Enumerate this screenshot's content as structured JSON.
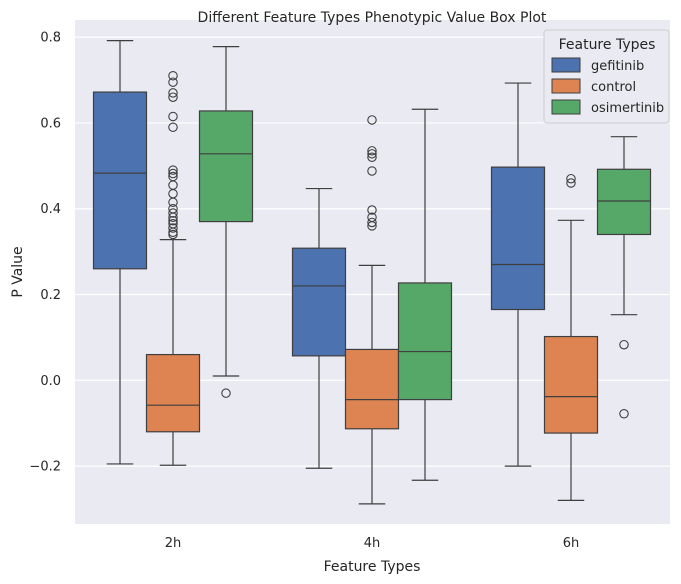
{
  "chart_data": {
    "type": "box",
    "title": "Different Feature Types Phenotypic Value Box Plot",
    "xlabel": "Feature Types",
    "ylabel": "P Value",
    "ylim": [
      -0.335,
      0.84
    ],
    "yticks": [
      -0.2,
      0.0,
      0.2,
      0.4,
      0.6,
      0.8
    ],
    "ytick_labels": [
      "−0.2",
      "0.0",
      "0.2",
      "0.4",
      "0.6",
      "0.8"
    ],
    "grid": true,
    "categories": [
      "2h",
      "4h",
      "6h"
    ],
    "legend": {
      "title": "Feature Types",
      "placement": "top-right"
    },
    "series": [
      {
        "name": "gefitinib",
        "color": "#4c72b0",
        "boxes": [
          {
            "whisker_low": -0.195,
            "q1": 0.26,
            "median": 0.483,
            "q3": 0.672,
            "whisker_high": 0.792,
            "outliers": []
          },
          {
            "whisker_low": -0.205,
            "q1": 0.057,
            "median": 0.22,
            "q3": 0.308,
            "whisker_high": 0.447,
            "outliers": []
          },
          {
            "whisker_low": -0.2,
            "q1": 0.165,
            "median": 0.27,
            "q3": 0.497,
            "whisker_high": 0.693,
            "outliers": []
          }
        ]
      },
      {
        "name": "control",
        "color": "#dd8452",
        "boxes": [
          {
            "whisker_low": -0.198,
            "q1": -0.12,
            "median": -0.058,
            "q3": 0.06,
            "whisker_high": 0.328,
            "outliers": [
              0.71,
              0.695,
              0.67,
              0.66,
              0.615,
              0.59,
              0.49,
              0.482,
              0.475,
              0.455,
              0.435,
              0.415,
              0.4,
              0.39,
              0.38,
              0.372,
              0.365,
              0.355,
              0.345,
              0.34
            ]
          },
          {
            "whisker_low": -0.288,
            "q1": -0.113,
            "median": -0.045,
            "q3": 0.072,
            "whisker_high": 0.268,
            "outliers": [
              0.607,
              0.535,
              0.528,
              0.52,
              0.488,
              0.397,
              0.38,
              0.368,
              0.36
            ]
          },
          {
            "whisker_low": -0.28,
            "q1": -0.123,
            "median": -0.038,
            "q3": 0.102,
            "whisker_high": 0.373,
            "outliers": [
              0.47,
              0.46
            ]
          }
        ]
      },
      {
        "name": "osimertinib",
        "color": "#55a868",
        "boxes": [
          {
            "whisker_low": 0.01,
            "q1": 0.37,
            "median": 0.528,
            "q3": 0.628,
            "whisker_high": 0.778,
            "outliers": [
              -0.03
            ]
          },
          {
            "whisker_low": -0.233,
            "q1": -0.045,
            "median": 0.067,
            "q3": 0.227,
            "whisker_high": 0.632,
            "outliers": []
          },
          {
            "whisker_low": 0.153,
            "q1": 0.34,
            "median": 0.418,
            "q3": 0.492,
            "whisker_high": 0.568,
            "outliers": [
              0.083,
              -0.078
            ]
          }
        ]
      }
    ]
  }
}
